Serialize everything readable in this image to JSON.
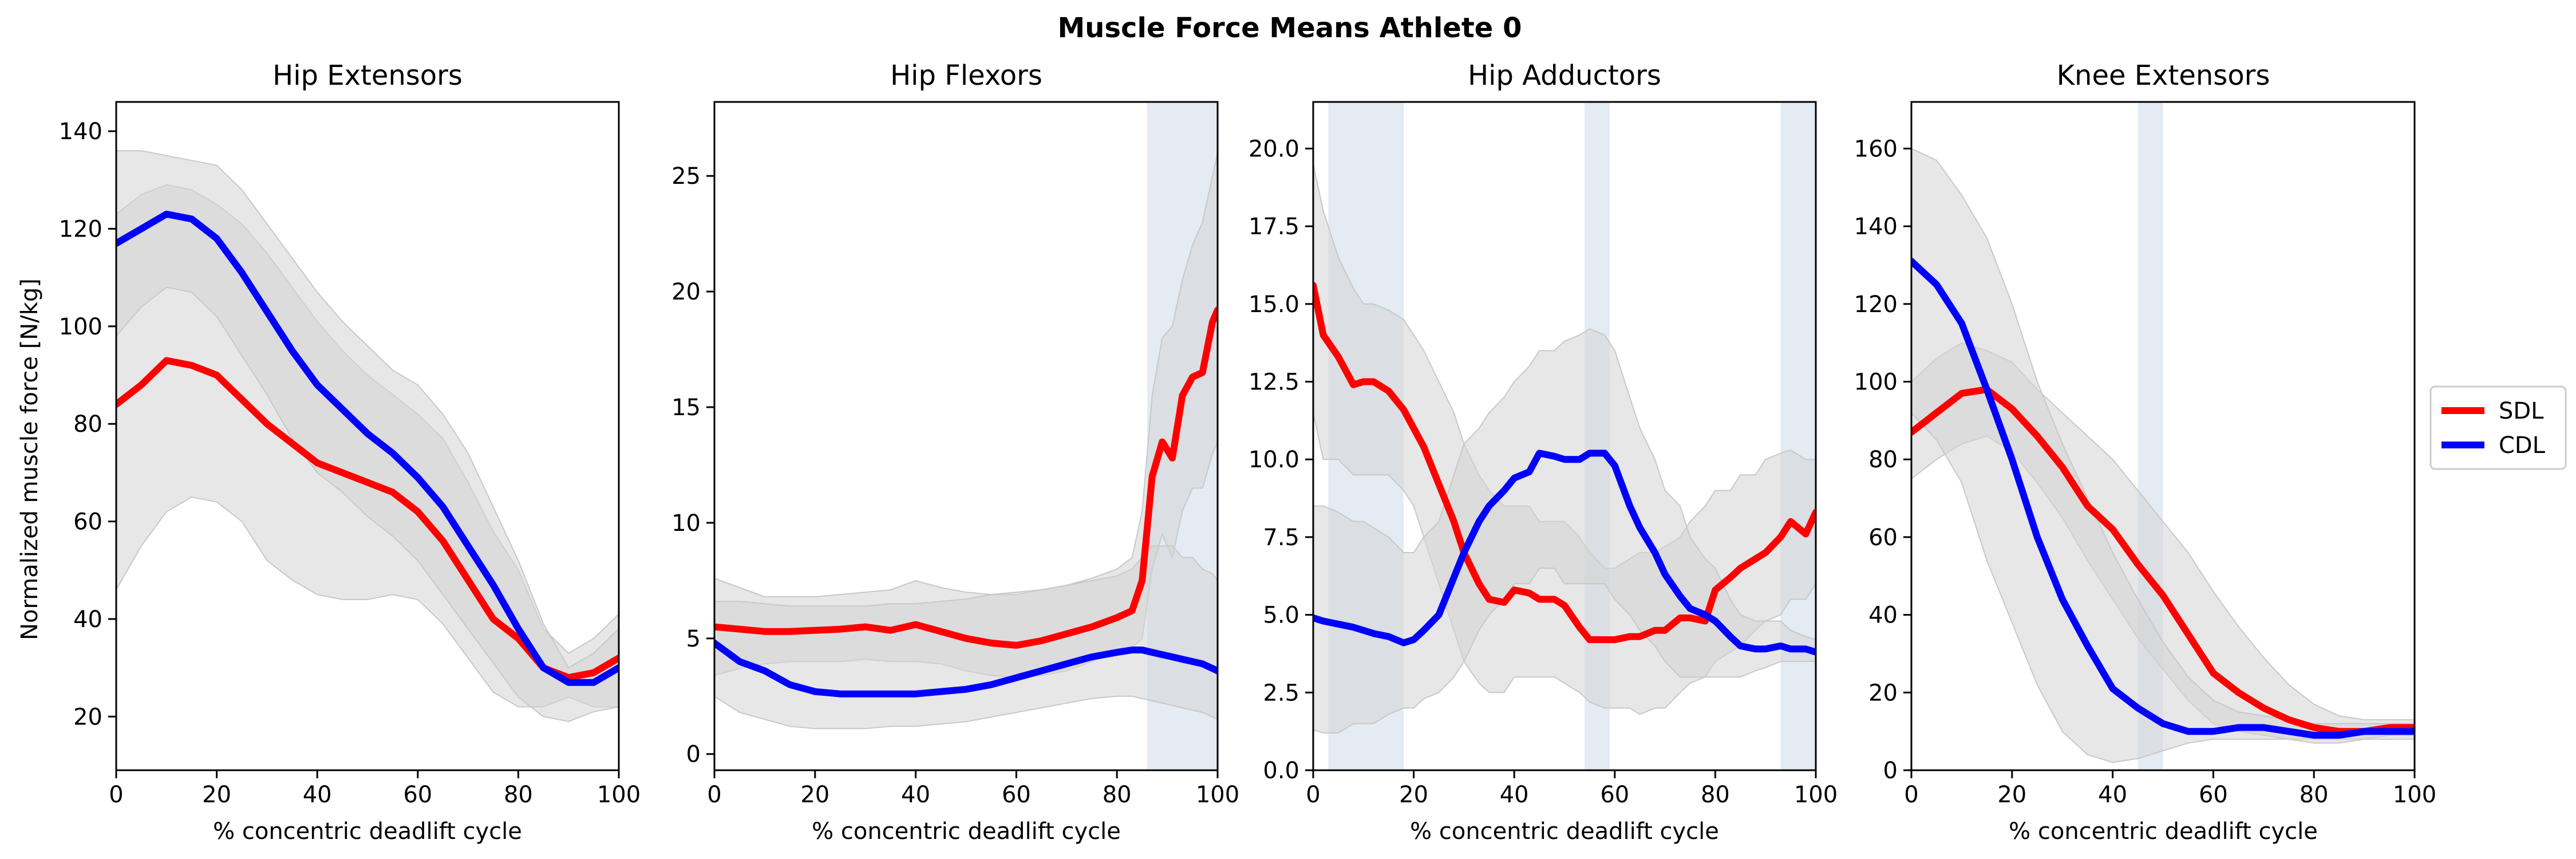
{
  "figure": {
    "title": "Muscle Force Means Athlete 0",
    "ylabel": "Normalized muscle force [N/kg]"
  },
  "legend": [
    {
      "name": "SDL",
      "color": "#ff0000"
    },
    {
      "name": "CDL",
      "color": "#0000ff"
    }
  ],
  "colors": {
    "band": "#d4d4d4",
    "shade": "#dbe4ef"
  },
  "chart_data": [
    {
      "type": "line",
      "title": "Hip Extensors",
      "xlabel": "% concentric deadlift cycle",
      "ylabel": "Normalized muscle force [N/kg]",
      "xlim": [
        0,
        100
      ],
      "ylim": [
        9,
        146
      ],
      "xticks": [
        0,
        20,
        40,
        60,
        80,
        100
      ],
      "yticks": [
        20,
        40,
        60,
        80,
        100,
        120,
        140
      ],
      "x": [
        0,
        5,
        10,
        15,
        20,
        25,
        30,
        35,
        40,
        45,
        50,
        55,
        60,
        65,
        70,
        75,
        80,
        85,
        90,
        95,
        100
      ],
      "series": [
        {
          "name": "SDL",
          "values": [
            84,
            88,
            93,
            92,
            90,
            85,
            80,
            76,
            72,
            70,
            68,
            66,
            62,
            56,
            48,
            40,
            36,
            30,
            28,
            29,
            32
          ],
          "upper": [
            123,
            127,
            129,
            128,
            125,
            121,
            115,
            108,
            101,
            95,
            90,
            86,
            82,
            77,
            68,
            58,
            50,
            38,
            33,
            36,
            41
          ],
          "lower": [
            46,
            55,
            62,
            65,
            64,
            60,
            52,
            48,
            45,
            44,
            44,
            45,
            44,
            39,
            32,
            25,
            22,
            22,
            24,
            22,
            22
          ]
        },
        {
          "name": "CDL",
          "values": [
            117,
            120,
            123,
            122,
            118,
            111,
            103,
            95,
            88,
            83,
            78,
            74,
            69,
            63,
            55,
            47,
            38,
            30,
            27,
            27,
            30
          ],
          "upper": [
            136,
            136,
            135,
            134,
            133,
            128,
            121,
            114,
            107,
            101,
            96,
            91,
            88,
            82,
            74,
            63,
            52,
            39,
            30,
            33,
            38
          ],
          "lower": [
            98,
            104,
            108,
            107,
            102,
            94,
            86,
            77,
            70,
            66,
            61,
            57,
            52,
            45,
            38,
            31,
            24,
            20,
            19,
            21,
            22
          ]
        }
      ],
      "shaded_x": []
    },
    {
      "type": "line",
      "title": "Hip Flexors",
      "xlabel": "% concentric deadlift cycle",
      "ylabel": "",
      "xlim": [
        0,
        100
      ],
      "ylim": [
        -0.7,
        28.2
      ],
      "xticks": [
        0,
        20,
        40,
        60,
        80,
        100
      ],
      "yticks": [
        0,
        5,
        10,
        15,
        20,
        25
      ],
      "x": [
        0,
        5,
        10,
        15,
        20,
        25,
        30,
        35,
        40,
        45,
        50,
        55,
        60,
        65,
        70,
        75,
        80,
        83,
        85,
        87,
        89,
        91,
        93,
        95,
        97,
        99,
        100
      ],
      "series": [
        {
          "name": "SDL",
          "values": [
            5.5,
            5.4,
            5.3,
            5.3,
            5.35,
            5.4,
            5.5,
            5.35,
            5.6,
            5.3,
            5.0,
            4.8,
            4.7,
            4.9,
            5.2,
            5.5,
            5.9,
            6.2,
            7.5,
            12.0,
            13.5,
            12.8,
            15.5,
            16.3,
            16.5,
            18.7,
            19.2
          ],
          "upper": [
            7.6,
            7.2,
            6.8,
            6.8,
            6.8,
            6.9,
            7.0,
            7.1,
            7.5,
            7.2,
            7.0,
            6.9,
            6.9,
            7.1,
            7.3,
            7.6,
            8.0,
            8.5,
            10.5,
            15.5,
            18.0,
            18.5,
            20.5,
            22.0,
            23.0,
            25.0,
            26.0
          ],
          "lower": [
            3.4,
            3.7,
            3.9,
            4.0,
            4.0,
            4.0,
            4.1,
            4.0,
            4.0,
            3.9,
            3.6,
            3.4,
            3.3,
            3.4,
            3.6,
            4.0,
            4.5,
            4.6,
            5.0,
            8.0,
            9.5,
            8.5,
            10.5,
            11.5,
            11.5,
            13.0,
            13.5
          ]
        },
        {
          "name": "CDL",
          "values": [
            4.8,
            4.0,
            3.6,
            3.0,
            2.7,
            2.6,
            2.6,
            2.6,
            2.6,
            2.7,
            2.8,
            3.0,
            3.3,
            3.6,
            3.9,
            4.2,
            4.4,
            4.5,
            4.5,
            4.4,
            4.3,
            4.2,
            4.1,
            4.0,
            3.9,
            3.7,
            3.6
          ],
          "upper": [
            6.6,
            6.6,
            6.5,
            6.4,
            6.4,
            6.4,
            6.4,
            6.5,
            6.5,
            6.6,
            6.7,
            6.9,
            7.0,
            7.1,
            7.3,
            7.5,
            7.7,
            8.0,
            8.5,
            9.0,
            9.0,
            9.0,
            8.5,
            8.5,
            8.0,
            7.8,
            7.5
          ],
          "lower": [
            2.5,
            1.8,
            1.5,
            1.2,
            1.1,
            1.1,
            1.1,
            1.2,
            1.2,
            1.3,
            1.4,
            1.6,
            1.8,
            2.0,
            2.2,
            2.4,
            2.5,
            2.5,
            2.4,
            2.3,
            2.2,
            2.1,
            2.0,
            1.9,
            1.8,
            1.6,
            1.5
          ]
        }
      ],
      "shaded_x": [
        [
          86,
          100
        ]
      ]
    },
    {
      "type": "line",
      "title": "Hip Adductors",
      "xlabel": "% concentric deadlift cycle",
      "ylabel": "",
      "xlim": [
        0,
        100
      ],
      "ylim": [
        0,
        21.5
      ],
      "xticks": [
        0,
        20,
        40,
        60,
        80,
        100
      ],
      "yticks": [
        0.0,
        2.5,
        5.0,
        7.5,
        10.0,
        12.5,
        15.0,
        17.5,
        20.0
      ],
      "x": [
        0,
        2,
        5,
        8,
        10,
        12,
        15,
        18,
        20,
        22,
        25,
        28,
        30,
        33,
        35,
        38,
        40,
        43,
        45,
        48,
        50,
        53,
        55,
        58,
        60,
        63,
        65,
        68,
        70,
        73,
        75,
        78,
        80,
        83,
        85,
        88,
        90,
        93,
        95,
        98,
        100
      ],
      "series": [
        {
          "name": "SDL",
          "values": [
            15.6,
            14.0,
            13.3,
            12.4,
            12.5,
            12.5,
            12.2,
            11.6,
            11.0,
            10.4,
            9.2,
            8.0,
            7.0,
            6.0,
            5.5,
            5.4,
            5.8,
            5.7,
            5.5,
            5.5,
            5.3,
            4.6,
            4.2,
            4.2,
            4.2,
            4.3,
            4.3,
            4.5,
            4.5,
            4.9,
            4.9,
            4.8,
            5.8,
            6.2,
            6.5,
            6.8,
            7.0,
            7.5,
            8.0,
            7.6,
            8.3
          ],
          "upper": [
            19.5,
            18.0,
            16.5,
            15.5,
            15.0,
            15.0,
            14.8,
            14.5,
            14.0,
            13.5,
            12.5,
            11.5,
            10.5,
            9.5,
            9.0,
            8.5,
            8.5,
            8.5,
            8.0,
            8.0,
            8.0,
            7.5,
            7.0,
            6.5,
            6.5,
            6.8,
            7.0,
            7.0,
            7.2,
            7.5,
            8.0,
            8.5,
            9.0,
            9.0,
            9.5,
            9.5,
            10.0,
            10.2,
            10.3,
            10.0,
            10.0
          ],
          "lower": [
            11.5,
            10.0,
            10.0,
            9.5,
            9.5,
            9.5,
            9.5,
            9.0,
            8.5,
            7.5,
            6.0,
            4.5,
            3.5,
            2.8,
            2.5,
            2.5,
            3.0,
            3.0,
            3.0,
            3.0,
            2.8,
            2.5,
            2.2,
            2.0,
            2.0,
            2.0,
            1.8,
            2.0,
            2.0,
            2.5,
            2.8,
            3.0,
            3.5,
            3.8,
            4.0,
            4.5,
            4.8,
            5.0,
            5.5,
            5.5,
            6.0
          ]
        },
        {
          "name": "CDL",
          "values": [
            4.9,
            4.8,
            4.7,
            4.6,
            4.5,
            4.4,
            4.3,
            4.1,
            4.2,
            4.5,
            5.0,
            6.2,
            7.0,
            8.0,
            8.5,
            9.0,
            9.4,
            9.6,
            10.2,
            10.1,
            10.0,
            10.0,
            10.2,
            10.2,
            9.8,
            8.5,
            7.8,
            7.0,
            6.3,
            5.6,
            5.2,
            5.0,
            4.8,
            4.3,
            4.0,
            3.9,
            3.9,
            4.0,
            3.9,
            3.9,
            3.8
          ],
          "upper": [
            8.5,
            8.5,
            8.3,
            8.0,
            8.0,
            7.8,
            7.5,
            7.0,
            7.0,
            7.5,
            8.0,
            9.5,
            10.5,
            11.0,
            11.5,
            12.0,
            12.5,
            13.0,
            13.5,
            13.5,
            13.8,
            14.0,
            14.2,
            14.0,
            13.5,
            12.0,
            11.0,
            10.0,
            9.0,
            8.5,
            7.5,
            6.8,
            6.5,
            5.5,
            5.0,
            4.8,
            4.8,
            4.8,
            4.5,
            4.3,
            4.2
          ],
          "lower": [
            1.3,
            1.2,
            1.2,
            1.5,
            1.5,
            1.5,
            1.8,
            2.0,
            2.0,
            2.3,
            2.5,
            3.0,
            3.5,
            4.5,
            5.0,
            5.5,
            6.0,
            6.0,
            6.5,
            6.5,
            6.0,
            6.0,
            6.0,
            6.0,
            5.5,
            5.0,
            4.5,
            4.0,
            3.5,
            3.0,
            3.0,
            3.0,
            3.0,
            3.0,
            3.0,
            3.2,
            3.3,
            3.5,
            3.5,
            3.5,
            3.5
          ]
        }
      ],
      "shaded_x": [
        [
          3,
          18
        ],
        [
          54,
          59
        ],
        [
          93,
          100
        ]
      ]
    },
    {
      "type": "line",
      "title": "Knee Extensors",
      "xlabel": "% concentric deadlift cycle",
      "ylabel": "",
      "xlim": [
        0,
        100
      ],
      "ylim": [
        0,
        172
      ],
      "xticks": [
        0,
        20,
        40,
        60,
        80,
        100
      ],
      "yticks": [
        0,
        20,
        40,
        60,
        80,
        100,
        120,
        140,
        160
      ],
      "x": [
        0,
        5,
        10,
        15,
        20,
        25,
        30,
        35,
        40,
        45,
        50,
        55,
        60,
        65,
        70,
        75,
        80,
        85,
        90,
        95,
        100
      ],
      "series": [
        {
          "name": "SDL",
          "values": [
            87,
            92,
            97,
            98,
            93,
            86,
            78,
            68,
            62,
            53,
            45,
            35,
            25,
            20,
            16,
            13,
            11,
            10,
            10,
            11,
            11
          ],
          "upper": [
            100,
            106,
            110,
            108,
            105,
            98,
            92,
            86,
            80,
            72,
            64,
            56,
            46,
            37,
            29,
            22,
            17,
            14,
            13,
            13,
            13
          ],
          "lower": [
            75,
            80,
            84,
            86,
            82,
            74,
            65,
            54,
            44,
            34,
            26,
            18,
            12,
            10,
            9,
            8,
            8,
            8,
            8,
            9,
            9
          ]
        },
        {
          "name": "CDL",
          "values": [
            131,
            125,
            115,
            98,
            80,
            60,
            44,
            32,
            21,
            16,
            12,
            10,
            10,
            11,
            11,
            10,
            9,
            9,
            10,
            10,
            10
          ],
          "upper": [
            160,
            157,
            148,
            137,
            120,
            100,
            84,
            70,
            56,
            44,
            33,
            24,
            18,
            15,
            14,
            13,
            12,
            12,
            12,
            12,
            12
          ],
          "lower": [
            92,
            85,
            74,
            54,
            38,
            22,
            10,
            4,
            2,
            3,
            5,
            7,
            8,
            8,
            8,
            8,
            7,
            7,
            8,
            8,
            8
          ]
        }
      ],
      "shaded_x": [
        [
          45,
          50
        ]
      ]
    }
  ]
}
